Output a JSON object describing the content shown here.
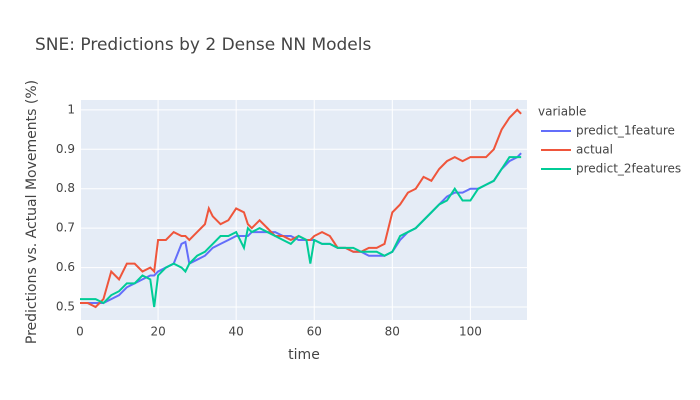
{
  "chart_data": {
    "type": "line",
    "title": "SNE: Predictions by 2 Dense NN Models",
    "x_label": "time",
    "y_label": "Predictions vs. Actual Movements (%)",
    "legend_title": "variable",
    "x": [
      0,
      2,
      4,
      6,
      8,
      10,
      12,
      14,
      16,
      18,
      19,
      20,
      22,
      24,
      26,
      27,
      28,
      30,
      32,
      33,
      34,
      36,
      38,
      40,
      42,
      43,
      44,
      46,
      48,
      50,
      52,
      54,
      56,
      58,
      59,
      60,
      62,
      64,
      66,
      68,
      70,
      72,
      74,
      76,
      78,
      80,
      82,
      84,
      86,
      88,
      90,
      92,
      94,
      96,
      98,
      100,
      102,
      104,
      106,
      108,
      110,
      112,
      113
    ],
    "series": [
      {
        "name": "predict_1feature",
        "color": "#636efa",
        "values": [
          0.51,
          0.51,
          0.51,
          0.51,
          0.52,
          0.53,
          0.55,
          0.56,
          0.57,
          0.58,
          0.58,
          0.59,
          0.6,
          0.61,
          0.66,
          0.665,
          0.61,
          0.62,
          0.63,
          0.64,
          0.65,
          0.66,
          0.67,
          0.68,
          0.68,
          0.68,
          0.69,
          0.69,
          0.69,
          0.69,
          0.68,
          0.68,
          0.67,
          0.67,
          0.67,
          0.67,
          0.66,
          0.66,
          0.65,
          0.65,
          0.64,
          0.64,
          0.63,
          0.63,
          0.63,
          0.64,
          0.67,
          0.69,
          0.7,
          0.72,
          0.74,
          0.76,
          0.78,
          0.79,
          0.79,
          0.8,
          0.8,
          0.81,
          0.82,
          0.85,
          0.87,
          0.88,
          0.89
        ]
      },
      {
        "name": "actual",
        "color": "#ef553b",
        "values": [
          0.51,
          0.51,
          0.5,
          0.52,
          0.59,
          0.57,
          0.61,
          0.61,
          0.59,
          0.6,
          0.59,
          0.67,
          0.67,
          0.69,
          0.68,
          0.68,
          0.67,
          0.69,
          0.71,
          0.75,
          0.73,
          0.71,
          0.72,
          0.75,
          0.74,
          0.71,
          0.7,
          0.72,
          0.7,
          0.68,
          0.68,
          0.67,
          0.68,
          0.67,
          0.67,
          0.68,
          0.69,
          0.68,
          0.65,
          0.65,
          0.64,
          0.64,
          0.65,
          0.65,
          0.66,
          0.74,
          0.76,
          0.79,
          0.8,
          0.83,
          0.82,
          0.85,
          0.87,
          0.88,
          0.87,
          0.88,
          0.88,
          0.88,
          0.9,
          0.95,
          0.98,
          1.0,
          0.99
        ]
      },
      {
        "name": "predict_2features",
        "color": "#00cc96",
        "values": [
          0.52,
          0.52,
          0.52,
          0.51,
          0.53,
          0.54,
          0.56,
          0.56,
          0.58,
          0.57,
          0.5,
          0.58,
          0.6,
          0.61,
          0.6,
          0.59,
          0.61,
          0.63,
          0.64,
          0.65,
          0.66,
          0.68,
          0.68,
          0.69,
          0.65,
          0.7,
          0.69,
          0.7,
          0.69,
          0.68,
          0.67,
          0.66,
          0.68,
          0.67,
          0.61,
          0.67,
          0.66,
          0.66,
          0.65,
          0.65,
          0.65,
          0.64,
          0.64,
          0.64,
          0.63,
          0.64,
          0.68,
          0.69,
          0.7,
          0.72,
          0.74,
          0.76,
          0.77,
          0.8,
          0.77,
          0.77,
          0.8,
          0.81,
          0.82,
          0.85,
          0.88,
          0.88,
          0.88
        ]
      }
    ],
    "xlim": [
      0,
      114.5
    ],
    "ylim": [
      0.467,
      1.025
    ],
    "xticks": [
      0,
      20,
      40,
      60,
      80,
      100
    ],
    "yticks": [
      0.5,
      0.6,
      0.7,
      0.8,
      0.9,
      1
    ],
    "grid": true,
    "legend_position": "right",
    "plot_background": "#e5ecf6"
  }
}
